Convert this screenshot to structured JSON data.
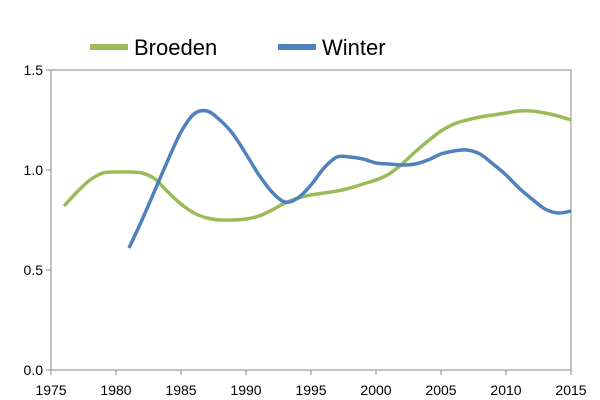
{
  "chart_data": {
    "type": "line",
    "title": "",
    "xlabel": "",
    "ylabel": "",
    "xlim": [
      1975,
      2015
    ],
    "ylim": [
      0.0,
      1.5
    ],
    "x_ticks": [
      "1975",
      "1980",
      "1985",
      "1990",
      "1995",
      "2000",
      "2005",
      "2010",
      "2015"
    ],
    "y_ticks": [
      "0.0",
      "0.5",
      "1.0",
      "1.5"
    ],
    "grid": false,
    "legend": "top",
    "series": [
      {
        "name": "Broeden",
        "color": "#9BBB59",
        "x": [
          1976,
          1977,
          1978,
          1979,
          1980,
          1981,
          1982,
          1983,
          1984,
          1985,
          1986,
          1987,
          1988,
          1989,
          1990,
          1991,
          1992,
          1993,
          1994,
          1995,
          1996,
          1997,
          1998,
          1999,
          2000,
          2001,
          2002,
          2003,
          2004,
          2005,
          2006,
          2007,
          2008,
          2009,
          2010,
          2011,
          2012,
          2013,
          2014,
          2015
        ],
        "values": [
          0.82,
          0.89,
          0.95,
          0.985,
          0.99,
          0.99,
          0.985,
          0.955,
          0.89,
          0.83,
          0.785,
          0.76,
          0.75,
          0.75,
          0.755,
          0.77,
          0.8,
          0.835,
          0.86,
          0.875,
          0.885,
          0.895,
          0.91,
          0.93,
          0.95,
          0.98,
          1.03,
          1.09,
          1.145,
          1.195,
          1.23,
          1.25,
          1.265,
          1.275,
          1.285,
          1.295,
          1.295,
          1.285,
          1.27,
          1.25
        ]
      },
      {
        "name": "Winter",
        "color": "#4F81BD",
        "x": [
          1981,
          1982,
          1983,
          1984,
          1985,
          1986,
          1987,
          1988,
          1989,
          1990,
          1991,
          1992,
          1993,
          1994,
          1995,
          1996,
          1997,
          1998,
          1999,
          2000,
          2001,
          2002,
          2003,
          2004,
          2005,
          2006,
          2007,
          2008,
          2009,
          2010,
          2011,
          2012,
          2013,
          2014,
          2015
        ],
        "values": [
          0.61,
          0.75,
          0.9,
          1.05,
          1.19,
          1.28,
          1.295,
          1.25,
          1.18,
          1.08,
          0.975,
          0.89,
          0.84,
          0.86,
          0.925,
          1.01,
          1.065,
          1.065,
          1.055,
          1.035,
          1.03,
          1.025,
          1.03,
          1.05,
          1.08,
          1.095,
          1.1,
          1.08,
          1.03,
          0.975,
          0.91,
          0.855,
          0.805,
          0.785,
          0.795
        ]
      }
    ]
  }
}
